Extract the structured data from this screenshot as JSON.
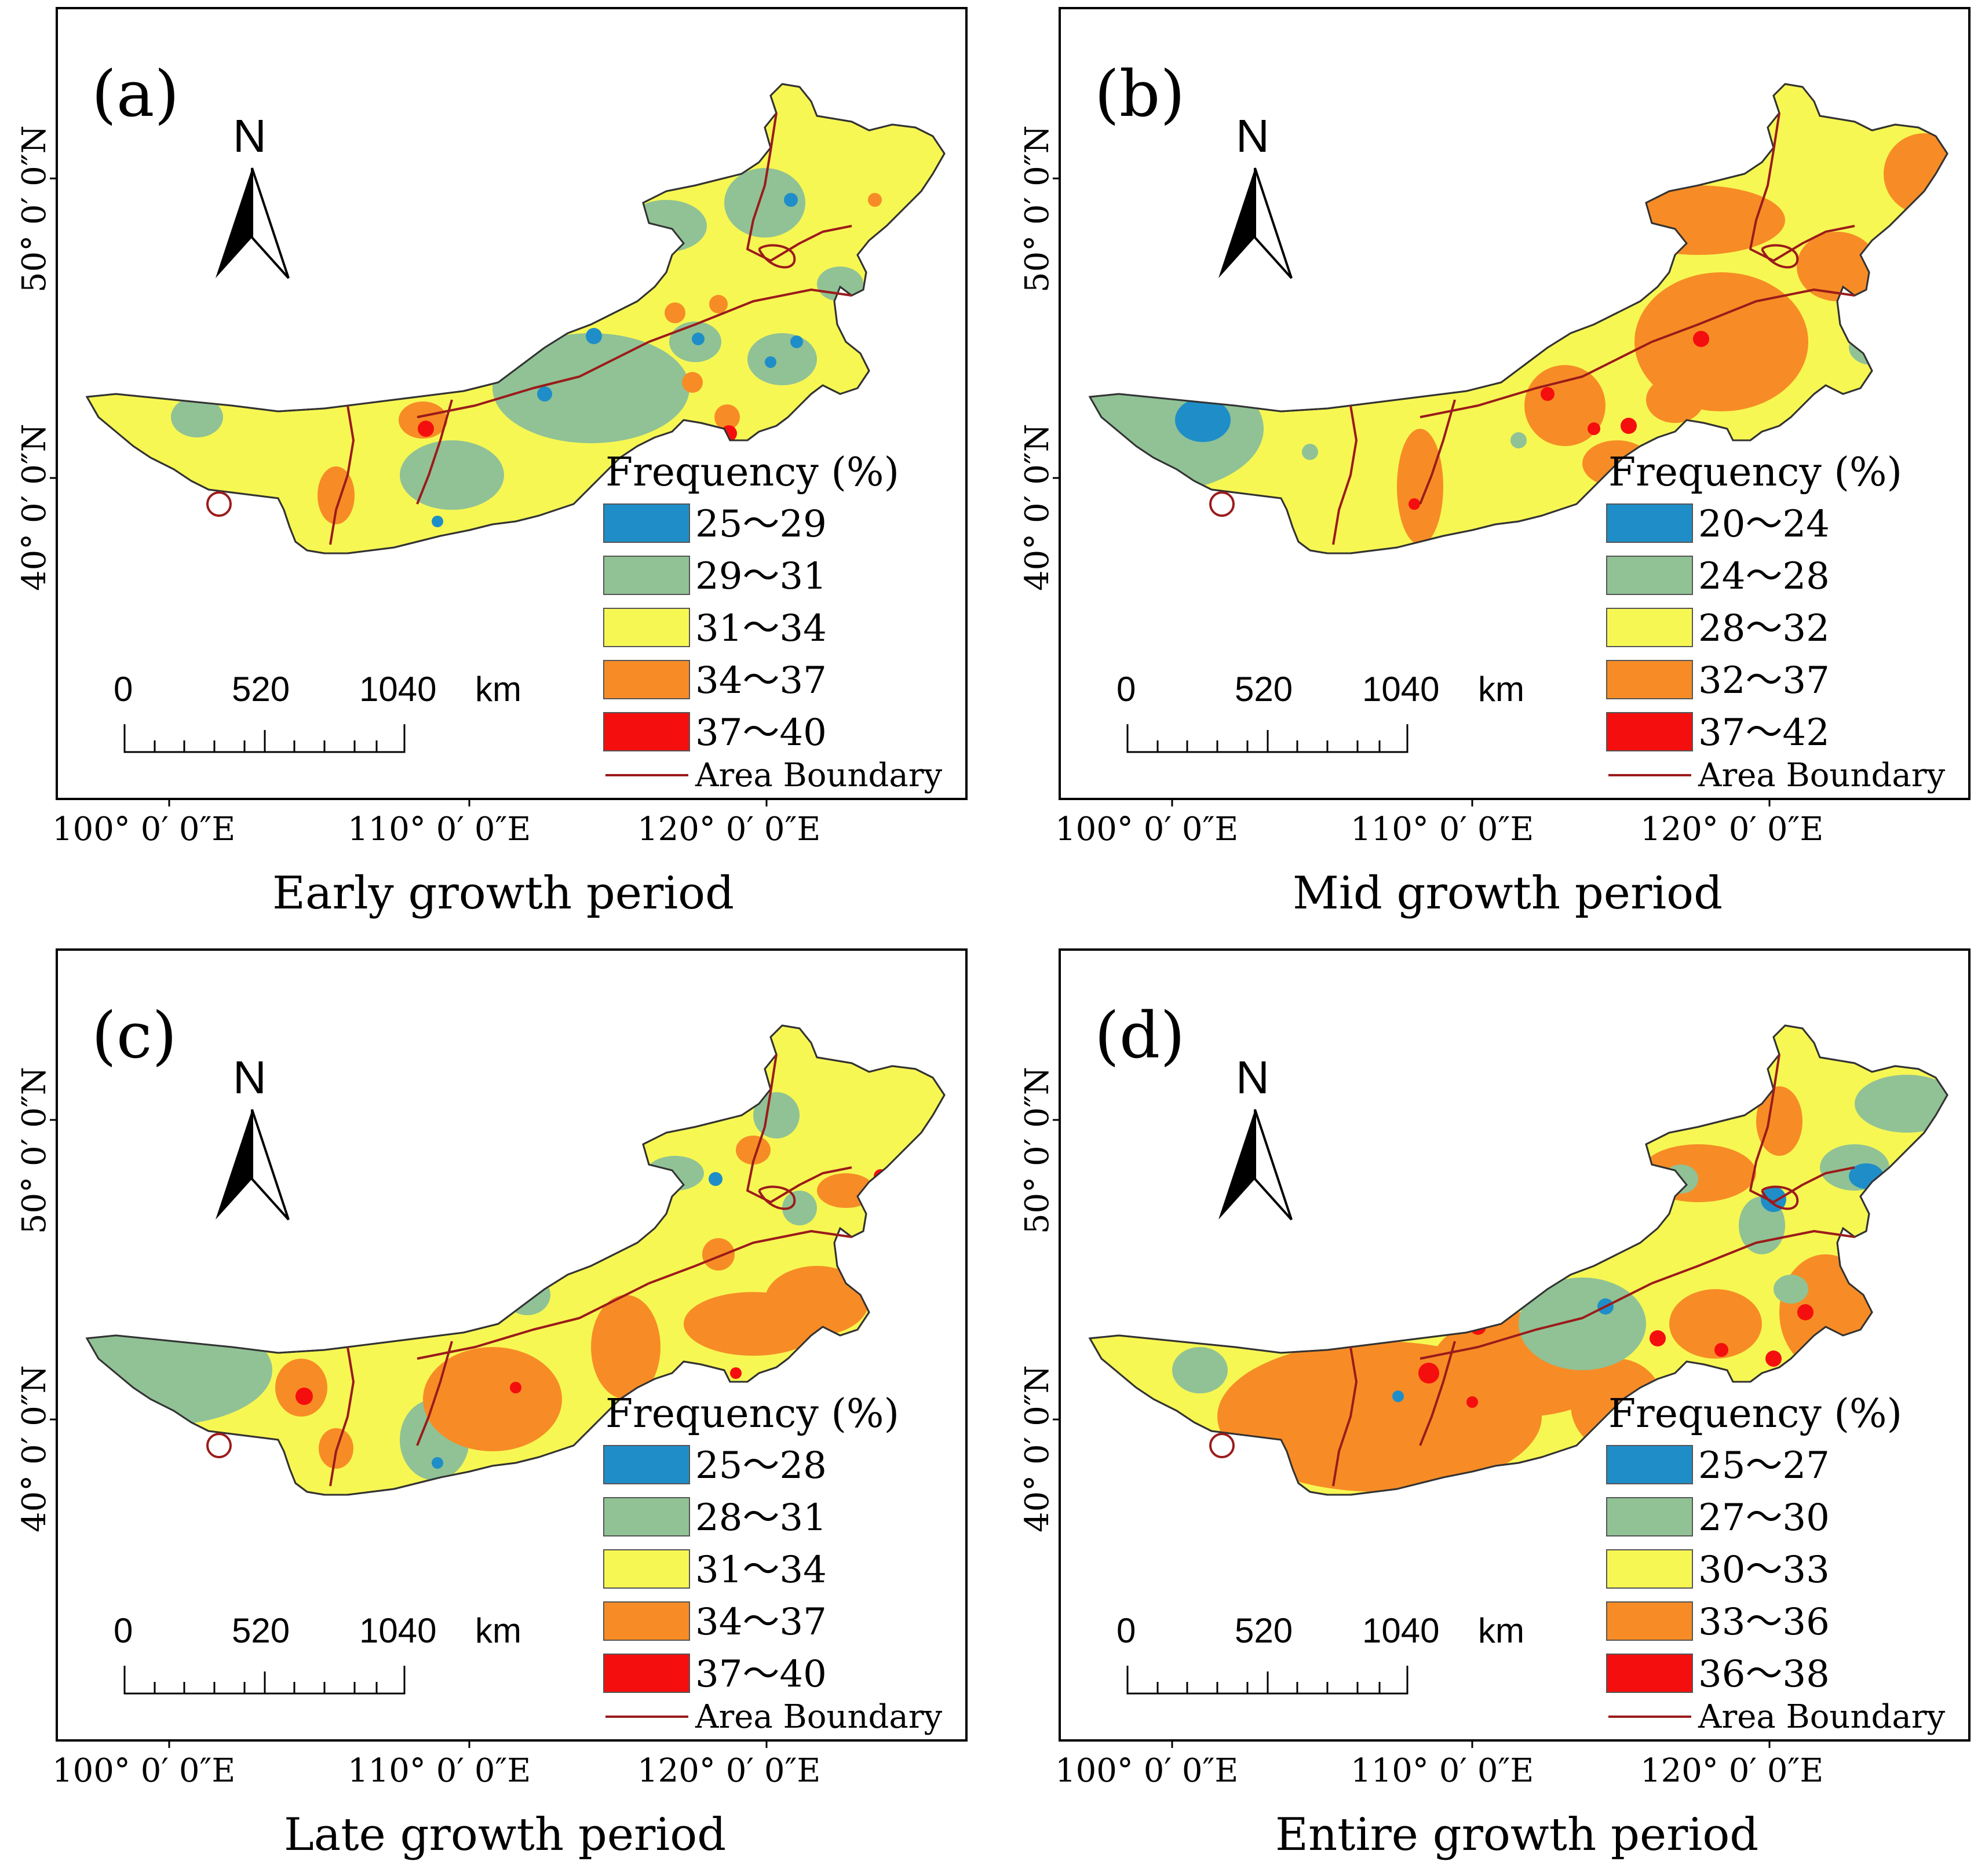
{
  "colors": {
    "class1": "#1f8ec8",
    "class2": "#90c295",
    "class3": "#f7f753",
    "class4": "#f78c26",
    "class5": "#f50e0e",
    "boundary": "#9b1b1b"
  },
  "common": {
    "north_label": "N",
    "legend_title": "Frequency (%)",
    "boundary_label": "Area Boundary",
    "scale": {
      "start": "0",
      "mid": "520",
      "end": "1040",
      "unit": "km"
    },
    "lat_labels": [
      "50° 0′ 0″N",
      "40° 0′ 0″N"
    ],
    "lon_labels": [
      "100° 0′ 0″E",
      "110° 0′ 0″E",
      "120° 0′ 0″E"
    ]
  },
  "panels": [
    {
      "letter": "(a)",
      "caption": "Early growth period",
      "legend": [
        "25～29",
        "29～31",
        "31～34",
        "34～37",
        "37～40"
      ]
    },
    {
      "letter": "(b)",
      "caption": "Mid growth period",
      "legend": [
        "20～24",
        "24～28",
        "28～32",
        "32～37",
        "37～42"
      ]
    },
    {
      "letter": "(c)",
      "caption": "Late growth period",
      "legend": [
        "25～28",
        "28～31",
        "31～34",
        "34～37",
        "37～40"
      ]
    },
    {
      "letter": "(d)",
      "caption": "Entire growth period",
      "legend": [
        "25～27",
        "27～30",
        "30～33",
        "33～36",
        "36～38"
      ]
    }
  ]
}
